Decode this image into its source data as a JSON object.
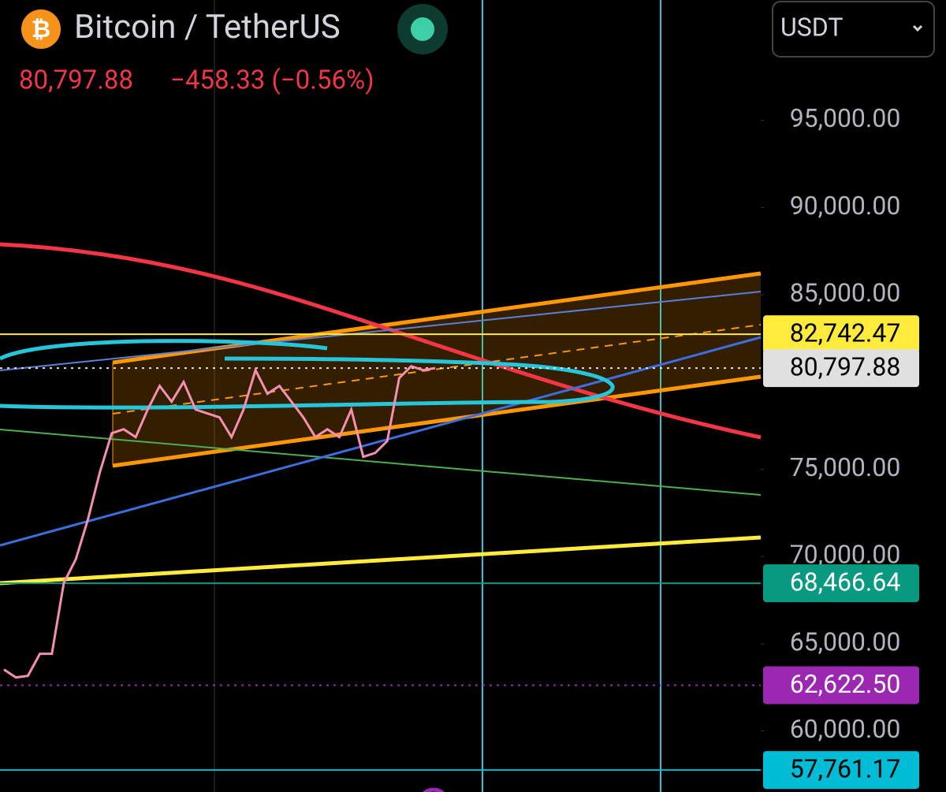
{
  "header": {
    "symbol": "Bitcoin / TetherUS",
    "price": "80,797.88",
    "change": "−458.33 (−0.56%)",
    "currency": "USDT"
  },
  "chart_data": {
    "type": "line",
    "series": [
      {
        "color": "#f48fb1",
        "values": [
          63519,
          63067,
          63157,
          64422,
          64422,
          68487,
          69842,
          72100,
          74810,
          77069,
          77294,
          76843,
          78424,
          79779,
          78875,
          80005,
          78424,
          78198,
          77972,
          76843,
          78424,
          80682,
          79327,
          79779,
          78875,
          77972,
          76843,
          77294,
          76843,
          78424,
          75714,
          75939,
          76617,
          80230,
          80908,
          80682,
          80797.88
        ]
      }
    ],
    "ylim": [
      56500,
      101900
    ],
    "yticks": [
      {
        "value": 95000,
        "label": "95,000.00"
      },
      {
        "value": 90000,
        "label": "90,000.00"
      },
      {
        "value": 85000,
        "label": "85,000.00"
      },
      {
        "value": 75000,
        "label": "75,000.00"
      },
      {
        "value": 70000,
        "label": "70,000.00"
      },
      {
        "value": 65000,
        "label": "65,000.00"
      },
      {
        "value": 60000,
        "label": "60,000.00"
      }
    ],
    "markers": [
      {
        "value": 82742.47,
        "label": "82,742.47",
        "color": "#ffeb3b",
        "text_color": "#000000",
        "line_style": "solid"
      },
      {
        "value": 80797.88,
        "label": "80,797.88",
        "color": "#e0e0e0",
        "text_color": "#000000",
        "line_style": "dotted"
      },
      {
        "value": 68466.64,
        "label": "68,466.64",
        "color": "#089981",
        "text_color": "#ffffff",
        "line_style": "solid"
      },
      {
        "value": 62622.5,
        "label": "62,622.50",
        "color": "#9c27b0",
        "text_color": "#ffffff",
        "line_style": "dotted"
      },
      {
        "value": 57761.17,
        "label": "57,761.17",
        "color": "#00bcd4",
        "text_color": "#000000",
        "line_style": "solid"
      }
    ]
  }
}
